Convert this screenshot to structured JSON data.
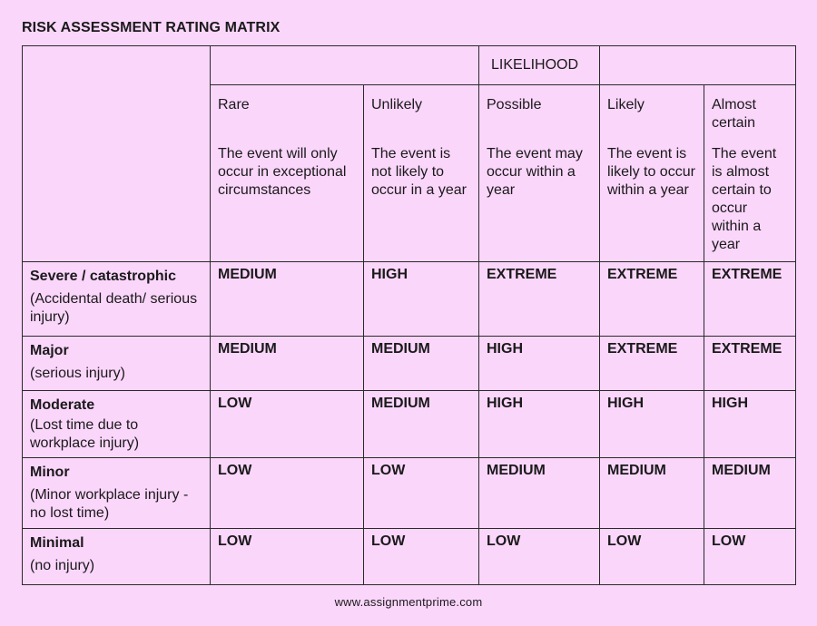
{
  "title": "RISK ASSESSMENT RATING MATRIX",
  "likelihood_label": "LIKELIHOOD",
  "likelihood": [
    {
      "name": "Rare",
      "description": "The event will only occur in exceptional circumstances"
    },
    {
      "name": "Unlikely",
      "description": "The event is not likely to occur in a year"
    },
    {
      "name": "Possible",
      "description": "The event may occur within a year"
    },
    {
      "name": "Likely",
      "description": "The event is likely to occur within a year"
    },
    {
      "name": "Almost certain",
      "description": "The event is almost certain to occur within a year"
    }
  ],
  "severity": [
    {
      "name": "Severe / catastrophic",
      "description": "(Accidental death/ serious injury)",
      "ratings": [
        "MEDIUM",
        "HIGH",
        "EXTREME",
        "EXTREME",
        "EXTREME"
      ]
    },
    {
      "name": "Major",
      "description": "(serious injury)",
      "ratings": [
        "MEDIUM",
        "MEDIUM",
        "HIGH",
        "EXTREME",
        "EXTREME"
      ]
    },
    {
      "name": "Moderate",
      "description": "(Lost time due to workplace injury)",
      "ratings": [
        "LOW",
        "MEDIUM",
        "HIGH",
        "HIGH",
        "HIGH"
      ]
    },
    {
      "name": "Minor",
      "description": "(Minor workplace injury - no lost time)",
      "ratings": [
        "LOW",
        "LOW",
        "MEDIUM",
        "MEDIUM",
        "MEDIUM"
      ]
    },
    {
      "name": "Minimal",
      "description": "(no injury)",
      "ratings": [
        "LOW",
        "LOW",
        "LOW",
        "LOW",
        "LOW"
      ]
    }
  ],
  "footer": "www.assignmentprime.com"
}
